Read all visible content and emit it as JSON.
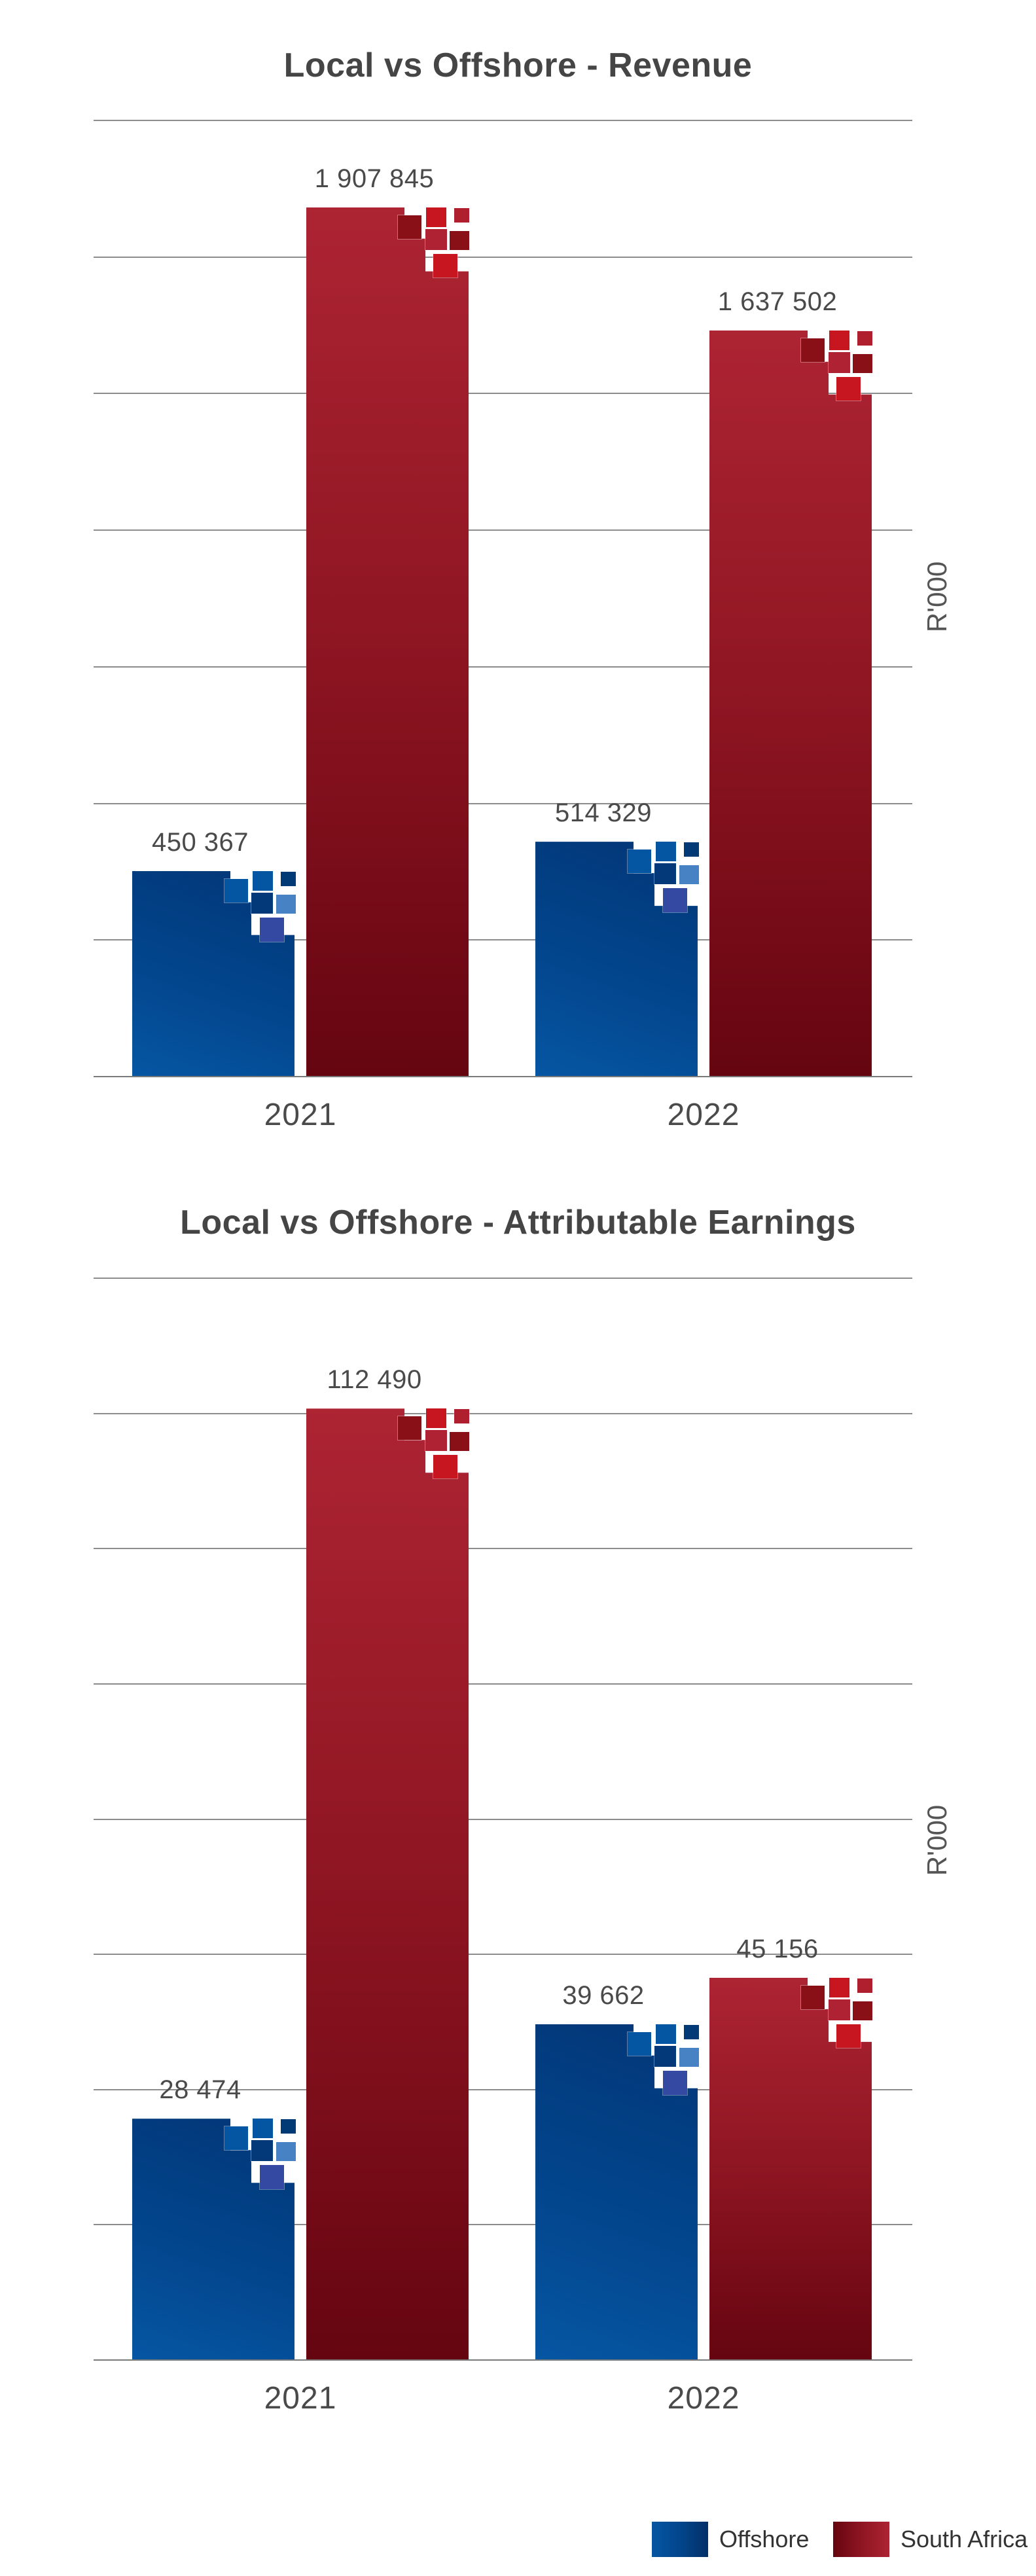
{
  "colors": {
    "offshore": "#02458c",
    "south_africa": "#9a1a28"
  },
  "legend": [
    {
      "label": "Offshore",
      "series": "offshore"
    },
    {
      "label": "South Africa",
      "series": "south_africa"
    }
  ],
  "chart_data": [
    {
      "type": "bar",
      "title": "Local vs Offshore - Revenue",
      "xlabel": "",
      "ylabel": "R'000",
      "categories": [
        "2021",
        "2022"
      ],
      "series": [
        {
          "name": "Offshore",
          "values": [
            450367,
            514329
          ],
          "labels": [
            "450 367",
            "514 329"
          ]
        },
        {
          "name": "South Africa",
          "values": [
            1907845,
            1637502
          ],
          "labels": [
            "1 907 845",
            "1 637 502"
          ]
        }
      ],
      "ylim": [
        0,
        2100000
      ],
      "gridline_count": 8,
      "grid": true,
      "y_tick_labels_shown": false,
      "legend": "bottom-right"
    },
    {
      "type": "bar",
      "title": "Local vs Offshore - Attributable Earnings",
      "xlabel": "",
      "ylabel": "R'000",
      "categories": [
        "2021",
        "2022"
      ],
      "series": [
        {
          "name": "Offshore",
          "values": [
            28474,
            39662
          ],
          "labels": [
            "28 474",
            "39 662"
          ]
        },
        {
          "name": "South Africa",
          "values": [
            112490,
            45156
          ],
          "labels": [
            "112 490",
            "45 156"
          ]
        }
      ],
      "ylim": [
        0,
        128000
      ],
      "gridline_count": 9,
      "grid": true,
      "y_tick_labels_shown": false,
      "legend": "bottom-right"
    }
  ]
}
